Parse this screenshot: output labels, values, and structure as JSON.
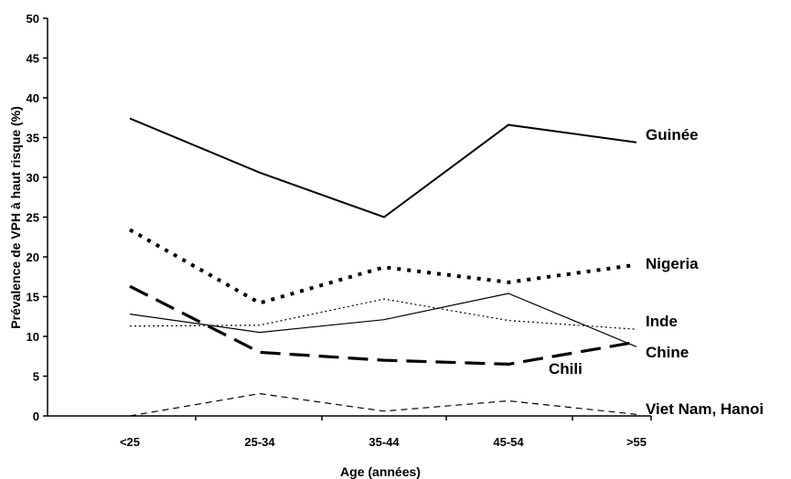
{
  "chart_data": {
    "type": "line",
    "title": "",
    "xlabel": "Age (années)",
    "ylabel": "Prévalence de VPH à haut risque (%)",
    "categories": [
      "<25",
      "25-34",
      "35-44",
      "45-54",
      ">55"
    ],
    "ylim": [
      0,
      50
    ],
    "yticks": [
      0,
      5,
      10,
      15,
      20,
      25,
      30,
      35,
      40,
      45,
      50
    ],
    "grid": false,
    "legend": "inline labels at line ends",
    "series": [
      {
        "name": "Guinée",
        "values": [
          37.4,
          30.6,
          25.0,
          36.6,
          34.4
        ],
        "style": "solid-medium",
        "color": "#000000"
      },
      {
        "name": "Nigeria",
        "values": [
          23.4,
          14.2,
          18.7,
          16.8,
          19.0
        ],
        "style": "dotted-thick",
        "color": "#000000"
      },
      {
        "name": "Inde",
        "values": [
          11.3,
          11.4,
          14.7,
          12.0,
          10.9
        ],
        "style": "dotted-thin",
        "color": "#000000"
      },
      {
        "name": "Chine",
        "values": [
          12.8,
          10.5,
          12.1,
          15.4,
          8.7
        ],
        "style": "solid-thin",
        "color": "#000000"
      },
      {
        "name": "Chili",
        "values": [
          16.3,
          8.0,
          7.0,
          6.5,
          9.3
        ],
        "style": "dashed-thick",
        "color": "#000000"
      },
      {
        "name": "Viet Nam, Hanoi",
        "values": [
          0.0,
          2.8,
          0.6,
          1.9,
          0.2
        ],
        "style": "dashed-thin",
        "color": "#000000"
      }
    ]
  }
}
